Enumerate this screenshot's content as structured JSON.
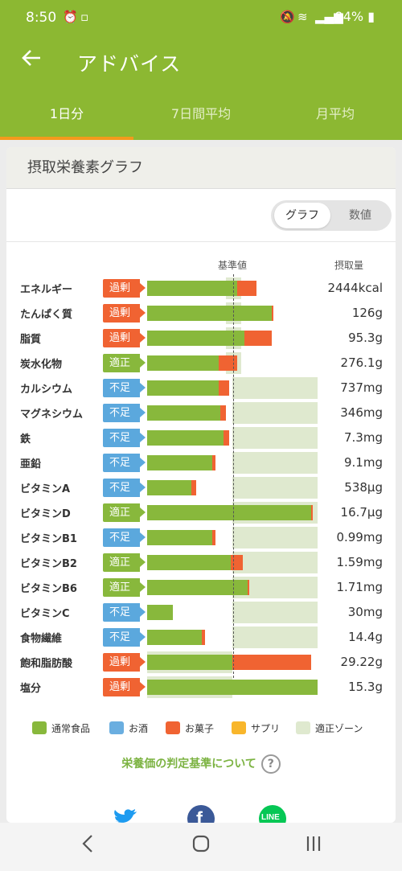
{
  "status": {
    "time": "8:50",
    "battery": "94%"
  },
  "appbar": {
    "title": "アドバイス"
  },
  "tabs": [
    "1日分",
    "7日間平均",
    "月平均"
  ],
  "card": {
    "title": "摂取栄養素グラフ",
    "toggle": {
      "graph": "グラフ",
      "numeric": "数値"
    },
    "col_reference": "基準値",
    "col_intake": "摂取量"
  },
  "nutrients": [
    {
      "name": "エネルギー",
      "status": "過剰",
      "value": "2444kcal",
      "normal": 0.53,
      "snack": 0.11,
      "zone": [
        0.46,
        0.55
      ]
    },
    {
      "name": "たんぱく質",
      "status": "過剰",
      "value": "126g",
      "normal": 0.73,
      "snack": 0.01,
      "zone": [
        0.46,
        0.55
      ]
    },
    {
      "name": "脂質",
      "status": "過剰",
      "value": "95.3g",
      "normal": 0.57,
      "snack": 0.16,
      "zone": [
        0.46,
        0.55
      ]
    },
    {
      "name": "炭水化物",
      "status": "適正",
      "value": "276.1g",
      "normal": 0.42,
      "snack": 0.11,
      "zone": [
        0.46,
        0.55
      ]
    },
    {
      "name": "カルシウム",
      "status": "不足",
      "value": "737mg",
      "normal": 0.42,
      "snack": 0.06,
      "zone": [
        0.5,
        1.0
      ]
    },
    {
      "name": "マグネシウム",
      "status": "不足",
      "value": "346mg",
      "normal": 0.43,
      "snack": 0.03,
      "zone": [
        0.5,
        1.0
      ]
    },
    {
      "name": "鉄",
      "status": "不足",
      "value": "7.3mg",
      "normal": 0.45,
      "snack": 0.03,
      "zone": [
        0.5,
        1.0
      ]
    },
    {
      "name": "亜鉛",
      "status": "不足",
      "value": "9.1mg",
      "normal": 0.38,
      "snack": 0.02,
      "zone": [
        0.5,
        1.0
      ]
    },
    {
      "name": "ビタミンA",
      "status": "不足",
      "value": "538μg",
      "normal": 0.26,
      "snack": 0.03,
      "zone": [
        0.5,
        1.0
      ]
    },
    {
      "name": "ビタミンD",
      "status": "適正",
      "value": "16.7μg",
      "normal": 0.96,
      "snack": 0.01,
      "zone": [
        0.5,
        1.0
      ]
    },
    {
      "name": "ビタミンB1",
      "status": "不足",
      "value": "0.99mg",
      "normal": 0.38,
      "snack": 0.02,
      "zone": [
        0.5,
        1.0
      ]
    },
    {
      "name": "ビタミンB2",
      "status": "適正",
      "value": "1.59mg",
      "normal": 0.49,
      "snack": 0.07,
      "zone": [
        0.5,
        1.0
      ]
    },
    {
      "name": "ビタミンB6",
      "status": "適正",
      "value": "1.71mg",
      "normal": 0.59,
      "snack": 0.01,
      "zone": [
        0.5,
        1.0
      ]
    },
    {
      "name": "ビタミンC",
      "status": "不足",
      "value": "30mg",
      "normal": 0.15,
      "snack": 0.0,
      "zone": [
        0.5,
        1.0
      ]
    },
    {
      "name": "食物繊維",
      "status": "不足",
      "value": "14.4g",
      "normal": 0.32,
      "snack": 0.02,
      "zone": [
        0.5,
        1.0
      ]
    },
    {
      "name": "飽和脂肪酸",
      "status": "過剰",
      "value": "29.22g",
      "normal": 0.5,
      "snack": 0.46,
      "zone": [
        0.0,
        0.5
      ]
    },
    {
      "name": "塩分",
      "status": "過剰",
      "value": "15.3g",
      "normal": 1.0,
      "snack": 0.0,
      "zone": [
        0.0,
        0.5
      ]
    }
  ],
  "legend": [
    {
      "label": "通常食品",
      "color": "#88b83c"
    },
    {
      "label": "お酒",
      "color": "#6aaee0"
    },
    {
      "label": "お菓子",
      "color": "#f06332"
    },
    {
      "label": "サプリ",
      "color": "#f8b62b"
    },
    {
      "label": "適正ゾーン",
      "color": "#dfe9cf"
    }
  ],
  "criteria_link": "栄養価の判定基準について",
  "share_icons": [
    "twitter-icon",
    "facebook-icon",
    "line-icon"
  ],
  "colors": {
    "header": "#8cb832",
    "over": "#f06332",
    "ok": "#88b83c",
    "low": "#5ba8dd",
    "normal": "#88b83c",
    "snack": "#f06332"
  }
}
